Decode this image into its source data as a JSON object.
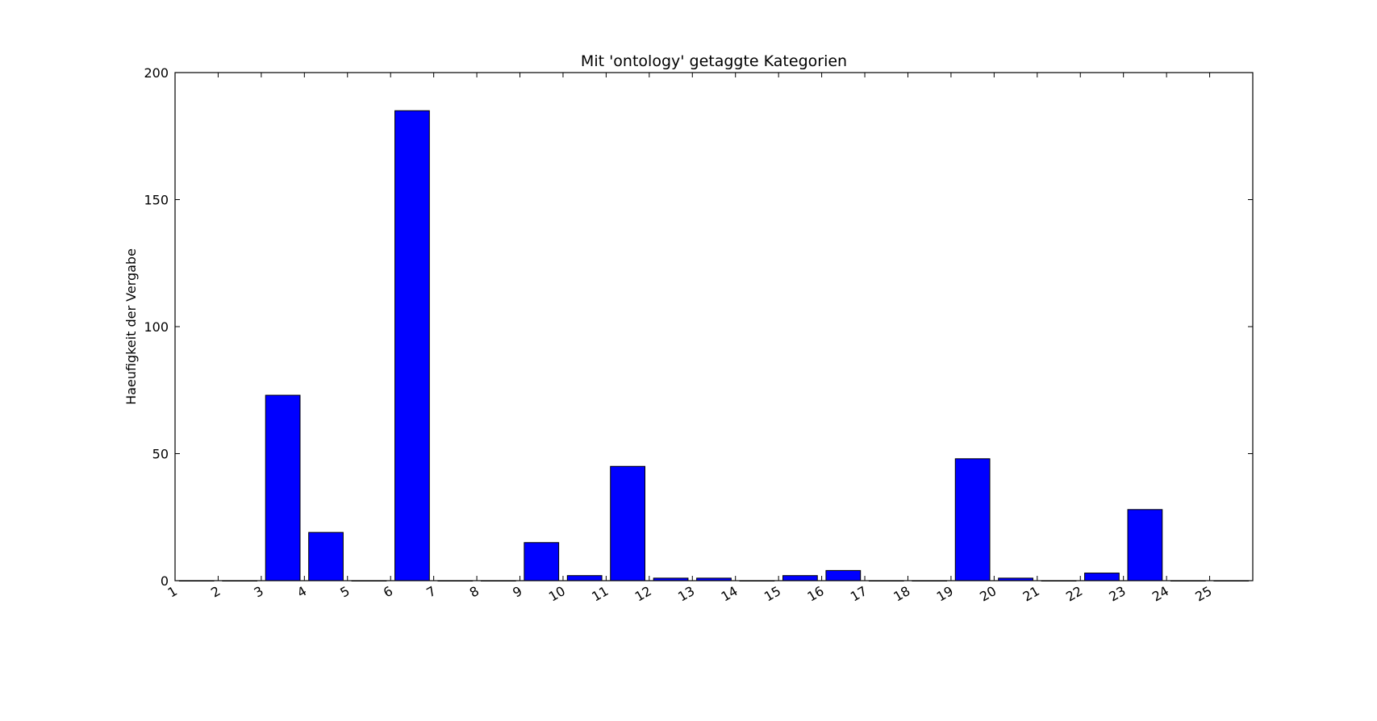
{
  "chart_data": {
    "type": "bar",
    "title": "Mit 'ontology' getaggte Kategorien",
    "xlabel": "",
    "ylabel": "Haeufigkeit der Vergabe",
    "x_tick_labels": [
      "1",
      "2",
      "3",
      "4",
      "5",
      "6",
      "7",
      "8",
      "9",
      "10",
      "11",
      "12",
      "13",
      "14",
      "15",
      "16",
      "17",
      "18",
      "19",
      "20",
      "21",
      "22",
      "23",
      "24",
      "25"
    ],
    "x_positions": [
      0,
      1,
      2,
      3,
      4,
      5,
      6,
      7,
      8,
      9,
      10,
      11,
      12,
      13,
      14,
      15,
      16,
      17,
      18,
      19,
      20,
      21,
      22,
      23,
      24
    ],
    "values": [
      0,
      0,
      73,
      19,
      0,
      185,
      0,
      0,
      15,
      2,
      45,
      1,
      1,
      0,
      2,
      4,
      0,
      0,
      48,
      1,
      0,
      3,
      28,
      0,
      0
    ],
    "xlim": [
      0,
      25
    ],
    "ylim": [
      0,
      200
    ],
    "y_ticks": [
      0,
      50,
      100,
      150,
      200
    ],
    "bar_color": "#0000ff",
    "edge_color": "#000000",
    "grid": false,
    "legend": "none"
  }
}
